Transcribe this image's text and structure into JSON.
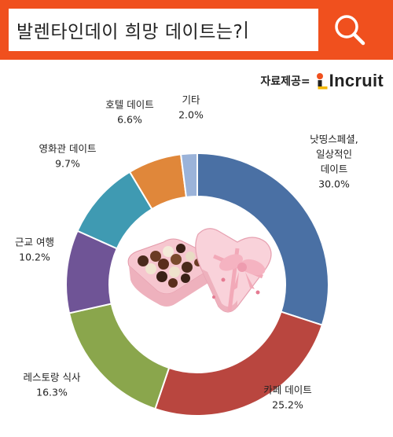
{
  "header": {
    "search_text": "발렌타인데이 희망 데이트는?",
    "accent_color": "#f0501e",
    "search_icon": "magnifier-icon"
  },
  "source": {
    "label": "자료제공=",
    "logo_text": "Incruit"
  },
  "chart_data": {
    "type": "donut",
    "title": "발렌타인데이 희망 데이트는?",
    "unit": "%",
    "slices": [
      {
        "name": "낫띵스페셜, 일상적인 데이트",
        "label_lines": [
          "낫띵스페셜,",
          "일상적인",
          "데이트"
        ],
        "value": 30.0,
        "value_label": "30.0%",
        "color": "#4a70a4"
      },
      {
        "name": "카페 데이트",
        "label_lines": [
          "카페 데이트"
        ],
        "value": 25.2,
        "value_label": "25.2%",
        "color": "#b9463f"
      },
      {
        "name": "레스토랑 식사",
        "label_lines": [
          "레스토랑 식사"
        ],
        "value": 16.3,
        "value_label": "16.3%",
        "color": "#8aa64c"
      },
      {
        "name": "근교 여행",
        "label_lines": [
          "근교 여행"
        ],
        "value": 10.2,
        "value_label": "10.2%",
        "color": "#6f5496"
      },
      {
        "name": "영화관 데이트",
        "label_lines": [
          "영화관 데이트"
        ],
        "value": 9.7,
        "value_label": "9.7%",
        "color": "#3f9ab2"
      },
      {
        "name": "호텔 데이트",
        "label_lines": [
          "호텔 데이트"
        ],
        "value": 6.6,
        "value_label": "6.6%",
        "color": "#e0873a"
      },
      {
        "name": "기타",
        "label_lines": [
          "기타"
        ],
        "value": 2.0,
        "value_label": "2.0%",
        "color": "#9bb3d9"
      }
    ],
    "center_image": "chocolate-gift-box"
  }
}
